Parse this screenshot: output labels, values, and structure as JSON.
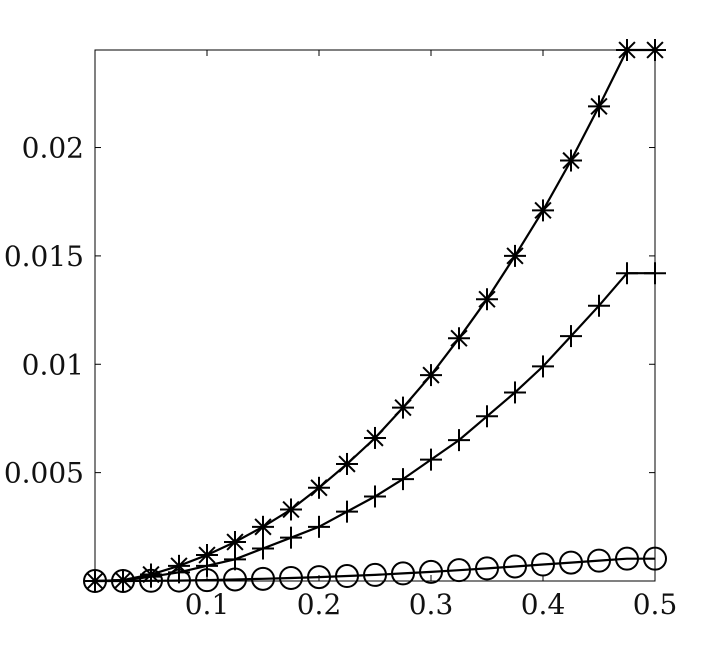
{
  "chart_data": {
    "type": "line",
    "title": "",
    "xlabel": "",
    "ylabel": "",
    "xlim": [
      0,
      0.5
    ],
    "ylim": [
      0,
      0.0245
    ],
    "grid": false,
    "legend": "none",
    "x_ticks": [
      {
        "value": 0.1,
        "label": "0.1"
      },
      {
        "value": 0.2,
        "label": "0.2"
      },
      {
        "value": 0.3,
        "label": "0.3"
      },
      {
        "value": 0.4,
        "label": "0.4"
      },
      {
        "value": 0.5,
        "label": "0.5"
      }
    ],
    "y_ticks": [
      {
        "value": 0.005,
        "label": "0.005"
      },
      {
        "value": 0.01,
        "label": "0.01"
      },
      {
        "value": 0.015,
        "label": "0.015"
      },
      {
        "value": 0.02,
        "label": "0.02"
      }
    ],
    "x": [
      0,
      0.025,
      0.05,
      0.075,
      0.1,
      0.125,
      0.15,
      0.175,
      0.2,
      0.225,
      0.25,
      0.275,
      0.3,
      0.325,
      0.35,
      0.375,
      0.4,
      0.425,
      0.45,
      0.475,
      0.5
    ],
    "series": [
      {
        "marker": "asterisk",
        "color": "#000000",
        "values": [
          0,
          4e-05,
          0.0003,
          0.0007,
          0.0012,
          0.0018,
          0.0025,
          0.0033,
          0.0043,
          0.0054,
          0.0066,
          0.008,
          0.0095,
          0.0112,
          0.013,
          0.015,
          0.0171,
          0.0194,
          0.0219,
          0.0245,
          0.0245
        ]
      },
      {
        "marker": "plus",
        "color": "#000000",
        "values": [
          0,
          2e-05,
          0.0002,
          0.0004,
          0.0007,
          0.001,
          0.0015,
          0.002,
          0.0025,
          0.0032,
          0.0039,
          0.0047,
          0.0056,
          0.0065,
          0.0076,
          0.0087,
          0.0099,
          0.0113,
          0.0127,
          0.0142,
          0.0142
        ]
      },
      {
        "marker": "circle",
        "color": "#000000",
        "values": [
          0,
          0.0,
          1e-05,
          2e-05,
          4e-05,
          7e-05,
          0.0001,
          0.00014,
          0.00018,
          0.00023,
          0.00028,
          0.00035,
          0.00042,
          0.0005,
          0.00058,
          0.00067,
          0.00076,
          0.00085,
          0.00094,
          0.00103,
          0.00103
        ]
      }
    ]
  }
}
